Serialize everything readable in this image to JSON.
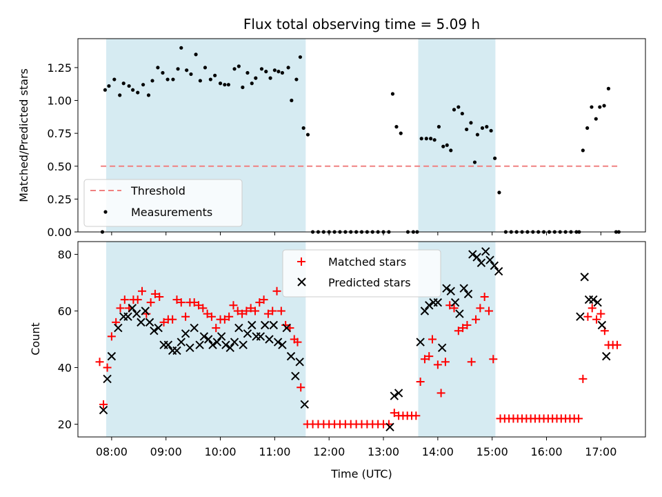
{
  "chart_data": {
    "type": "scatter",
    "title": "Flux total observing time = 5.09 h",
    "xlabel": "Time (UTC)",
    "x_ticks": [
      "08:00",
      "09:00",
      "10:00",
      "11:00",
      "12:00",
      "13:00",
      "14:00",
      "15:00",
      "16:00",
      "17:00"
    ],
    "x_range_hours": [
      7.38,
      17.82
    ],
    "shaded_intervals_hours": [
      [
        7.9,
        11.57
      ],
      [
        13.64,
        15.06
      ]
    ],
    "top": {
      "ylabel": "Matched/Predicted stars",
      "ylim": [
        0,
        1.47
      ],
      "y_ticks": [
        "0.00",
        "0.25",
        "0.50",
        "0.75",
        "1.00",
        "1.25"
      ],
      "threshold": 0.5,
      "threshold_range_hours": [
        7.8,
        17.33
      ],
      "legend": [
        "Threshold",
        "Measurements"
      ],
      "measurements": [
        [
          7.83,
          0.0
        ],
        [
          7.88,
          1.08
        ],
        [
          7.95,
          1.11
        ],
        [
          8.05,
          1.16
        ],
        [
          8.15,
          1.04
        ],
        [
          8.22,
          1.13
        ],
        [
          8.32,
          1.11
        ],
        [
          8.39,
          1.08
        ],
        [
          8.48,
          1.06
        ],
        [
          8.58,
          1.12
        ],
        [
          8.68,
          1.04
        ],
        [
          8.75,
          1.15
        ],
        [
          8.85,
          1.25
        ],
        [
          8.94,
          1.21
        ],
        [
          9.03,
          1.16
        ],
        [
          9.13,
          1.16
        ],
        [
          9.22,
          1.24
        ],
        [
          9.28,
          1.4
        ],
        [
          9.38,
          1.23
        ],
        [
          9.46,
          1.2
        ],
        [
          9.55,
          1.35
        ],
        [
          9.63,
          1.15
        ],
        [
          9.72,
          1.25
        ],
        [
          9.82,
          1.16
        ],
        [
          9.9,
          1.19
        ],
        [
          10.0,
          1.13
        ],
        [
          10.08,
          1.12
        ],
        [
          10.15,
          1.12
        ],
        [
          10.26,
          1.24
        ],
        [
          10.34,
          1.26
        ],
        [
          10.41,
          1.1
        ],
        [
          10.5,
          1.21
        ],
        [
          10.58,
          1.13
        ],
        [
          10.65,
          1.17
        ],
        [
          10.76,
          1.24
        ],
        [
          10.84,
          1.22
        ],
        [
          10.92,
          1.17
        ],
        [
          11.0,
          1.23
        ],
        [
          11.07,
          1.22
        ],
        [
          11.14,
          1.21
        ],
        [
          11.25,
          1.25
        ],
        [
          11.31,
          1.0
        ],
        [
          11.4,
          1.16
        ],
        [
          11.47,
          1.33
        ],
        [
          11.53,
          0.79
        ],
        [
          11.61,
          0.74
        ],
        [
          11.7,
          0.0
        ],
        [
          11.8,
          0.0
        ],
        [
          11.9,
          0.0
        ],
        [
          12.0,
          0.0
        ],
        [
          12.1,
          0.0
        ],
        [
          12.2,
          0.0
        ],
        [
          12.3,
          0.0
        ],
        [
          12.4,
          0.0
        ],
        [
          12.5,
          0.0
        ],
        [
          12.6,
          0.0
        ],
        [
          12.7,
          0.0
        ],
        [
          12.8,
          0.0
        ],
        [
          12.9,
          0.0
        ],
        [
          13.0,
          0.0
        ],
        [
          13.1,
          0.0
        ],
        [
          13.17,
          1.05
        ],
        [
          13.24,
          0.8
        ],
        [
          13.32,
          0.75
        ],
        [
          13.45,
          0.0
        ],
        [
          13.55,
          0.0
        ],
        [
          13.62,
          0.0
        ],
        [
          13.7,
          0.71
        ],
        [
          13.79,
          0.71
        ],
        [
          13.87,
          0.71
        ],
        [
          13.94,
          0.7
        ],
        [
          14.02,
          0.8
        ],
        [
          14.1,
          0.65
        ],
        [
          14.17,
          0.66
        ],
        [
          14.24,
          0.62
        ],
        [
          14.3,
          0.93
        ],
        [
          14.38,
          0.95
        ],
        [
          14.45,
          0.9
        ],
        [
          14.53,
          0.78
        ],
        [
          14.61,
          0.83
        ],
        [
          14.68,
          0.53
        ],
        [
          14.73,
          0.74
        ],
        [
          14.82,
          0.79
        ],
        [
          14.9,
          0.8
        ],
        [
          14.98,
          0.77
        ],
        [
          15.05,
          0.56
        ],
        [
          15.13,
          0.3
        ],
        [
          15.25,
          0.0
        ],
        [
          15.35,
          0.0
        ],
        [
          15.45,
          0.0
        ],
        [
          15.55,
          0.0
        ],
        [
          15.65,
          0.0
        ],
        [
          15.75,
          0.0
        ],
        [
          15.85,
          0.0
        ],
        [
          15.95,
          0.0
        ],
        [
          16.05,
          0.0
        ],
        [
          16.15,
          0.0
        ],
        [
          16.25,
          0.0
        ],
        [
          16.35,
          0.0
        ],
        [
          16.45,
          0.0
        ],
        [
          16.55,
          0.0
        ],
        [
          16.6,
          0.0
        ],
        [
          16.67,
          0.62
        ],
        [
          16.75,
          0.79
        ],
        [
          16.83,
          0.95
        ],
        [
          16.91,
          0.86
        ],
        [
          16.98,
          0.95
        ],
        [
          17.06,
          0.96
        ],
        [
          17.14,
          1.09
        ],
        [
          17.28,
          0.0
        ],
        [
          17.33,
          0.0
        ]
      ]
    },
    "bottom": {
      "ylabel": "Count",
      "ylim": [
        15.5,
        84.5
      ],
      "y_ticks": [
        "20",
        "40",
        "60",
        "80"
      ],
      "legend": [
        "Matched stars",
        "Predicted stars"
      ],
      "matched": [
        [
          7.78,
          42
        ],
        [
          7.85,
          27
        ],
        [
          7.92,
          40
        ],
        [
          8.0,
          51
        ],
        [
          8.08,
          56
        ],
        [
          8.16,
          61
        ],
        [
          8.24,
          64
        ],
        [
          8.32,
          61
        ],
        [
          8.4,
          64
        ],
        [
          8.48,
          64
        ],
        [
          8.56,
          67
        ],
        [
          8.64,
          59
        ],
        [
          8.72,
          63
        ],
        [
          8.8,
          66
        ],
        [
          8.88,
          65
        ],
        [
          8.96,
          56
        ],
        [
          9.04,
          57
        ],
        [
          9.12,
          57
        ],
        [
          9.2,
          64
        ],
        [
          9.28,
          63
        ],
        [
          9.36,
          58
        ],
        [
          9.44,
          63
        ],
        [
          9.52,
          63
        ],
        [
          9.6,
          62
        ],
        [
          9.68,
          61
        ],
        [
          9.76,
          59
        ],
        [
          9.84,
          58
        ],
        [
          9.92,
          54
        ],
        [
          10.0,
          57
        ],
        [
          10.08,
          57
        ],
        [
          10.16,
          58
        ],
        [
          10.24,
          62
        ],
        [
          10.32,
          60
        ],
        [
          10.4,
          59
        ],
        [
          10.48,
          60
        ],
        [
          10.56,
          61
        ],
        [
          10.64,
          60
        ],
        [
          10.72,
          63
        ],
        [
          10.8,
          64
        ],
        [
          10.88,
          59
        ],
        [
          10.96,
          60
        ],
        [
          11.04,
          67
        ],
        [
          11.12,
          60
        ],
        [
          11.2,
          55
        ],
        [
          11.28,
          54
        ],
        [
          11.36,
          50
        ],
        [
          11.42,
          49
        ],
        [
          11.48,
          33
        ],
        [
          11.6,
          20
        ],
        [
          11.7,
          20
        ],
        [
          11.8,
          20
        ],
        [
          11.9,
          20
        ],
        [
          12.0,
          20
        ],
        [
          12.1,
          20
        ],
        [
          12.2,
          20
        ],
        [
          12.3,
          20
        ],
        [
          12.4,
          20
        ],
        [
          12.5,
          20
        ],
        [
          12.6,
          20
        ],
        [
          12.7,
          20
        ],
        [
          12.8,
          20
        ],
        [
          12.9,
          20
        ],
        [
          13.0,
          20
        ],
        [
          13.1,
          20
        ],
        [
          13.2,
          24
        ],
        [
          13.28,
          23
        ],
        [
          13.36,
          23
        ],
        [
          13.44,
          23
        ],
        [
          13.52,
          23
        ],
        [
          13.6,
          23
        ],
        [
          13.68,
          35
        ],
        [
          13.76,
          43
        ],
        [
          13.84,
          44
        ],
        [
          13.9,
          50
        ],
        [
          14.0,
          41
        ],
        [
          14.06,
          31
        ],
        [
          14.14,
          42
        ],
        [
          14.22,
          62
        ],
        [
          14.3,
          61
        ],
        [
          14.38,
          53
        ],
        [
          14.46,
          54
        ],
        [
          14.54,
          55
        ],
        [
          14.62,
          42
        ],
        [
          14.7,
          57
        ],
        [
          14.78,
          61
        ],
        [
          14.86,
          65
        ],
        [
          14.94,
          60
        ],
        [
          15.02,
          43
        ],
        [
          15.15,
          22
        ],
        [
          15.23,
          22
        ],
        [
          15.31,
          22
        ],
        [
          15.39,
          22
        ],
        [
          15.47,
          22
        ],
        [
          15.55,
          22
        ],
        [
          15.63,
          22
        ],
        [
          15.71,
          22
        ],
        [
          15.79,
          22
        ],
        [
          15.87,
          22
        ],
        [
          15.95,
          22
        ],
        [
          16.03,
          22
        ],
        [
          16.11,
          22
        ],
        [
          16.19,
          22
        ],
        [
          16.27,
          22
        ],
        [
          16.35,
          22
        ],
        [
          16.43,
          22
        ],
        [
          16.51,
          22
        ],
        [
          16.59,
          22
        ],
        [
          16.67,
          36
        ],
        [
          16.76,
          58
        ],
        [
          16.84,
          61
        ],
        [
          16.92,
          57
        ],
        [
          17.0,
          59
        ],
        [
          17.07,
          53
        ],
        [
          17.14,
          48
        ],
        [
          17.22,
          48
        ],
        [
          17.3,
          48
        ]
      ],
      "predicted": [
        [
          7.85,
          25
        ],
        [
          7.92,
          36
        ],
        [
          8.0,
          44
        ],
        [
          8.12,
          54
        ],
        [
          8.22,
          58
        ],
        [
          8.3,
          58
        ],
        [
          8.38,
          61
        ],
        [
          8.46,
          59
        ],
        [
          8.54,
          56
        ],
        [
          8.62,
          60
        ],
        [
          8.7,
          56
        ],
        [
          8.78,
          53
        ],
        [
          8.86,
          54
        ],
        [
          8.96,
          48
        ],
        [
          9.04,
          48
        ],
        [
          9.12,
          46
        ],
        [
          9.2,
          46
        ],
        [
          9.28,
          49
        ],
        [
          9.36,
          52
        ],
        [
          9.44,
          47
        ],
        [
          9.52,
          54
        ],
        [
          9.62,
          48
        ],
        [
          9.7,
          51
        ],
        [
          9.78,
          50
        ],
        [
          9.86,
          48
        ],
        [
          9.94,
          49
        ],
        [
          10.02,
          51
        ],
        [
          10.1,
          48
        ],
        [
          10.18,
          47
        ],
        [
          10.26,
          49
        ],
        [
          10.34,
          54
        ],
        [
          10.42,
          48
        ],
        [
          10.5,
          52
        ],
        [
          10.58,
          55
        ],
        [
          10.66,
          51
        ],
        [
          10.74,
          51
        ],
        [
          10.82,
          55
        ],
        [
          10.9,
          50
        ],
        [
          10.98,
          55
        ],
        [
          11.06,
          49
        ],
        [
          11.14,
          48
        ],
        [
          11.22,
          54
        ],
        [
          11.3,
          44
        ],
        [
          11.38,
          37
        ],
        [
          11.46,
          42
        ],
        [
          11.55,
          27
        ],
        [
          13.12,
          19
        ],
        [
          13.2,
          30
        ],
        [
          13.28,
          31
        ],
        [
          13.68,
          49
        ],
        [
          13.76,
          60
        ],
        [
          13.84,
          62
        ],
        [
          13.92,
          63
        ],
        [
          14.0,
          63
        ],
        [
          14.08,
          47
        ],
        [
          14.16,
          68
        ],
        [
          14.24,
          67
        ],
        [
          14.32,
          63
        ],
        [
          14.4,
          59
        ],
        [
          14.48,
          68
        ],
        [
          14.56,
          66
        ],
        [
          14.64,
          80
        ],
        [
          14.72,
          79
        ],
        [
          14.8,
          77
        ],
        [
          14.88,
          81
        ],
        [
          14.96,
          78
        ],
        [
          15.04,
          76
        ],
        [
          15.12,
          74
        ],
        [
          16.62,
          58
        ],
        [
          16.7,
          72
        ],
        [
          16.78,
          64
        ],
        [
          16.86,
          64
        ],
        [
          16.94,
          63
        ],
        [
          17.02,
          55
        ],
        [
          17.1,
          44
        ]
      ]
    }
  }
}
